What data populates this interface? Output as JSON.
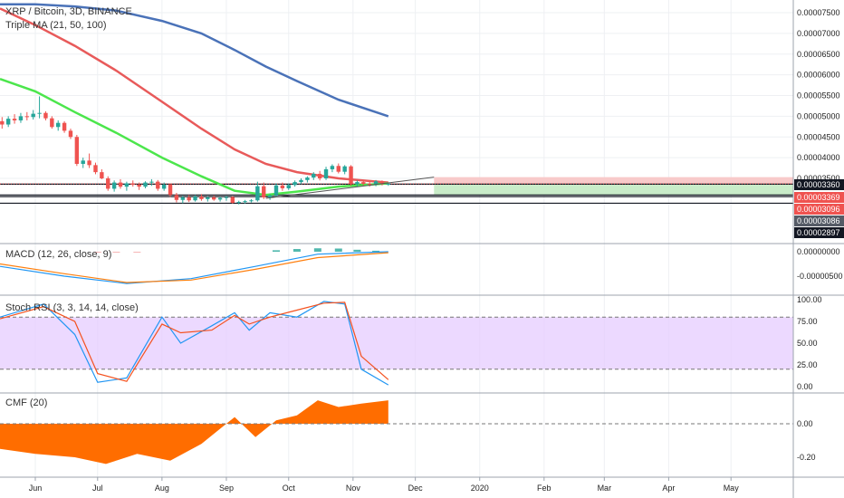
{
  "header": {
    "symbol": "XRP / Bitcoin, 3D, BINANCE",
    "indicator": "Triple MA (21, 50, 100)"
  },
  "colors": {
    "up": "#26a69a",
    "down": "#ef5350",
    "ma_fast": "#4ce64c",
    "ma_mid": "#e85a5a",
    "ma_slow": "#4a72b8",
    "macd": "#2196f3",
    "signal": "#ff7f0e",
    "stoch_k": "#2196f3",
    "stoch_d": "#f4511e",
    "rsi_band": "#e6ccff",
    "cmf_fill": "#ff6d00",
    "grid": "#eef0f3",
    "axis_border": "#9ca3ad"
  },
  "x_axis": {
    "labels": [
      "Jun",
      "Jul",
      "Aug",
      "Sep",
      "Oct",
      "Nov",
      "Dec",
      "2020",
      "Feb",
      "Mar",
      "Apr",
      "May"
    ],
    "start": "2019-05-15",
    "end": "2020-05-31"
  },
  "price_panel": {
    "y_ticks": [
      "0.00007500",
      "0.00007000",
      "0.00006500",
      "0.00006000",
      "0.00005500",
      "0.00005000",
      "0.00004500",
      "0.00004000",
      "0.00003500"
    ],
    "tags": [
      {
        "value": "0.00003360",
        "color": "#131722"
      },
      {
        "value": "0.00003369",
        "color": "#ef5350"
      },
      {
        "value": "0.00003096",
        "color": "#ef5350"
      },
      {
        "value": "0.00003086",
        "color": "#555b66"
      },
      {
        "value": "0.00002897",
        "color": "#131722"
      }
    ],
    "candles": [
      {
        "d": "2019-05-16",
        "o": 4.88e-05,
        "h": 4.98e-05,
        "l": 4.7e-05,
        "c": 4.8e-05
      },
      {
        "d": "2019-05-19",
        "o": 4.8e-05,
        "h": 5e-05,
        "l": 4.74e-05,
        "c": 4.94e-05
      },
      {
        "d": "2019-05-22",
        "o": 4.94e-05,
        "h": 5.05e-05,
        "l": 4.82e-05,
        "c": 4.9e-05
      },
      {
        "d": "2019-05-25",
        "o": 4.9e-05,
        "h": 5.08e-05,
        "l": 4.84e-05,
        "c": 5e-05
      },
      {
        "d": "2019-05-28",
        "o": 5e-05,
        "h": 5.1e-05,
        "l": 4.9e-05,
        "c": 4.98e-05
      },
      {
        "d": "2019-05-31",
        "o": 4.98e-05,
        "h": 5.15e-05,
        "l": 4.92e-05,
        "c": 5.06e-05
      },
      {
        "d": "2019-06-03",
        "o": 5.06e-05,
        "h": 5.48e-05,
        "l": 4.95e-05,
        "c": 5.08e-05
      },
      {
        "d": "2019-06-06",
        "o": 5.08e-05,
        "h": 5.12e-05,
        "l": 4.9e-05,
        "c": 4.95e-05
      },
      {
        "d": "2019-06-09",
        "o": 4.95e-05,
        "h": 5e-05,
        "l": 4.7e-05,
        "c": 4.74e-05
      },
      {
        "d": "2019-06-12",
        "o": 4.74e-05,
        "h": 4.9e-05,
        "l": 4.65e-05,
        "c": 4.84e-05
      },
      {
        "d": "2019-06-15",
        "o": 4.84e-05,
        "h": 4.88e-05,
        "l": 4.6e-05,
        "c": 4.65e-05
      },
      {
        "d": "2019-06-18",
        "o": 4.65e-05,
        "h": 4.7e-05,
        "l": 4.45e-05,
        "c": 4.5e-05
      },
      {
        "d": "2019-06-21",
        "o": 4.5e-05,
        "h": 4.55e-05,
        "l": 3.8e-05,
        "c": 3.85e-05
      },
      {
        "d": "2019-06-24",
        "o": 3.85e-05,
        "h": 4e-05,
        "l": 3.75e-05,
        "c": 3.93e-05
      },
      {
        "d": "2019-06-27",
        "o": 3.93e-05,
        "h": 4.1e-05,
        "l": 3.75e-05,
        "c": 3.82e-05
      },
      {
        "d": "2019-06-30",
        "o": 3.82e-05,
        "h": 3.88e-05,
        "l": 3.6e-05,
        "c": 3.65e-05
      },
      {
        "d": "2019-07-03",
        "o": 3.65e-05,
        "h": 3.72e-05,
        "l": 3.48e-05,
        "c": 3.5e-05
      },
      {
        "d": "2019-07-06",
        "o": 3.5e-05,
        "h": 3.55e-05,
        "l": 3.2e-05,
        "c": 3.25e-05
      },
      {
        "d": "2019-07-09",
        "o": 3.25e-05,
        "h": 3.45e-05,
        "l": 3.18e-05,
        "c": 3.4e-05
      },
      {
        "d": "2019-07-12",
        "o": 3.4e-05,
        "h": 3.48e-05,
        "l": 3.25e-05,
        "c": 3.3e-05
      },
      {
        "d": "2019-07-15",
        "o": 3.3e-05,
        "h": 3.42e-05,
        "l": 3.2e-05,
        "c": 3.38e-05
      },
      {
        "d": "2019-07-18",
        "o": 3.38e-05,
        "h": 3.45e-05,
        "l": 3.3e-05,
        "c": 3.35e-05
      },
      {
        "d": "2019-07-21",
        "o": 3.35e-05,
        "h": 3.4e-05,
        "l": 3.22e-05,
        "c": 3.3e-05
      },
      {
        "d": "2019-07-24",
        "o": 3.3e-05,
        "h": 3.43e-05,
        "l": 3.26e-05,
        "c": 3.4e-05
      },
      {
        "d": "2019-07-27",
        "o": 3.4e-05,
        "h": 3.48e-05,
        "l": 3.32e-05,
        "c": 3.42e-05
      },
      {
        "d": "2019-07-30",
        "o": 3.42e-05,
        "h": 3.46e-05,
        "l": 3.2e-05,
        "c": 3.25e-05
      },
      {
        "d": "2019-08-02",
        "o": 3.25e-05,
        "h": 3.4e-05,
        "l": 3.2e-05,
        "c": 3.35e-05
      },
      {
        "d": "2019-08-05",
        "o": 3.35e-05,
        "h": 3.38e-05,
        "l": 3.05e-05,
        "c": 3.1e-05
      },
      {
        "d": "2019-08-08",
        "o": 3.1e-05,
        "h": 3.15e-05,
        "l": 2.92e-05,
        "c": 2.98e-05
      },
      {
        "d": "2019-08-11",
        "o": 2.98e-05,
        "h": 3.08e-05,
        "l": 2.9e-05,
        "c": 3.04e-05
      },
      {
        "d": "2019-08-14",
        "o": 3.04e-05,
        "h": 3.1e-05,
        "l": 2.93e-05,
        "c": 2.97e-05
      },
      {
        "d": "2019-08-17",
        "o": 2.97e-05,
        "h": 3.1e-05,
        "l": 2.94e-05,
        "c": 3.06e-05
      },
      {
        "d": "2019-08-20",
        "o": 3.06e-05,
        "h": 3.12e-05,
        "l": 2.96e-05,
        "c": 3e-05
      },
      {
        "d": "2019-08-23",
        "o": 3e-05,
        "h": 3.07e-05,
        "l": 2.94e-05,
        "c": 3.04e-05
      },
      {
        "d": "2019-08-26",
        "o": 3.04e-05,
        "h": 3.09e-05,
        "l": 2.96e-05,
        "c": 2.99e-05
      },
      {
        "d": "2019-08-29",
        "o": 2.99e-05,
        "h": 3.06e-05,
        "l": 2.94e-05,
        "c": 3.03e-05
      },
      {
        "d": "2019-09-01",
        "o": 3.03e-05,
        "h": 3.08e-05,
        "l": 2.96e-05,
        "c": 3.05e-05
      },
      {
        "d": "2019-09-04",
        "o": 3.05e-05,
        "h": 3.07e-05,
        "l": 2.89e-05,
        "c": 2.91e-05
      },
      {
        "d": "2019-09-07",
        "o": 2.91e-05,
        "h": 2.96e-05,
        "l": 2.87e-05,
        "c": 2.93e-05
      },
      {
        "d": "2019-09-10",
        "o": 2.93e-05,
        "h": 2.98e-05,
        "l": 2.89e-05,
        "c": 2.95e-05
      },
      {
        "d": "2019-09-13",
        "o": 2.95e-05,
        "h": 3e-05,
        "l": 2.92e-05,
        "c": 2.97e-05
      },
      {
        "d": "2019-09-16",
        "o": 2.97e-05,
        "h": 3.42e-05,
        "l": 2.94e-05,
        "c": 3.31e-05
      },
      {
        "d": "2019-09-19",
        "o": 3.31e-05,
        "h": 3.4e-05,
        "l": 3e-05,
        "c": 3.04e-05
      },
      {
        "d": "2019-09-22",
        "o": 3.04e-05,
        "h": 3.12e-05,
        "l": 2.98e-05,
        "c": 3.09e-05
      },
      {
        "d": "2019-09-25",
        "o": 3.09e-05,
        "h": 3.38e-05,
        "l": 3.05e-05,
        "c": 3.33e-05
      },
      {
        "d": "2019-09-28",
        "o": 3.33e-05,
        "h": 3.4e-05,
        "l": 3.2e-05,
        "c": 3.26e-05
      },
      {
        "d": "2019-10-01",
        "o": 3.26e-05,
        "h": 3.38e-05,
        "l": 3.22e-05,
        "c": 3.34e-05
      },
      {
        "d": "2019-10-04",
        "o": 3.34e-05,
        "h": 3.45e-05,
        "l": 3.3e-05,
        "c": 3.41e-05
      },
      {
        "d": "2019-10-07",
        "o": 3.41e-05,
        "h": 3.5e-05,
        "l": 3.36e-05,
        "c": 3.46e-05
      },
      {
        "d": "2019-10-10",
        "o": 3.46e-05,
        "h": 3.55e-05,
        "l": 3.4e-05,
        "c": 3.52e-05
      },
      {
        "d": "2019-10-13",
        "o": 3.52e-05,
        "h": 3.65e-05,
        "l": 3.46e-05,
        "c": 3.61e-05
      },
      {
        "d": "2019-10-16",
        "o": 3.61e-05,
        "h": 3.68e-05,
        "l": 3.45e-05,
        "c": 3.5e-05
      },
      {
        "d": "2019-10-19",
        "o": 3.5e-05,
        "h": 3.78e-05,
        "l": 3.46e-05,
        "c": 3.72e-05
      },
      {
        "d": "2019-10-22",
        "o": 3.72e-05,
        "h": 3.84e-05,
        "l": 3.65e-05,
        "c": 3.8e-05
      },
      {
        "d": "2019-10-25",
        "o": 3.8e-05,
        "h": 3.86e-05,
        "l": 3.62e-05,
        "c": 3.66e-05
      },
      {
        "d": "2019-10-28",
        "o": 3.66e-05,
        "h": 3.82e-05,
        "l": 3.6e-05,
        "c": 3.79e-05
      },
      {
        "d": "2019-10-31",
        "o": 3.79e-05,
        "h": 3.82e-05,
        "l": 3.32e-05,
        "c": 3.36e-05
      },
      {
        "d": "2019-11-03",
        "o": 3.36e-05,
        "h": 3.45e-05,
        "l": 3.3e-05,
        "c": 3.41e-05
      },
      {
        "d": "2019-11-06",
        "o": 3.41e-05,
        "h": 3.45e-05,
        "l": 3.33e-05,
        "c": 3.37e-05
      },
      {
        "d": "2019-11-09",
        "o": 3.37e-05,
        "h": 3.42e-05,
        "l": 3.3e-05,
        "c": 3.35e-05
      },
      {
        "d": "2019-11-12",
        "o": 3.35e-05,
        "h": 3.46e-05,
        "l": 3.31e-05,
        "c": 3.43e-05
      },
      {
        "d": "2019-11-15",
        "o": 3.43e-05,
        "h": 3.45e-05,
        "l": 3.33e-05,
        "c": 3.36e-05
      },
      {
        "d": "2019-11-18",
        "o": 3.36e-05,
        "h": 3.4e-05,
        "l": 3.32e-05,
        "c": 3.37e-05
      }
    ],
    "ma_fast": [
      {
        "d": "2019-05-15",
        "v": 5.9e-05
      },
      {
        "d": "2019-06-01",
        "v": 5.6e-05
      },
      {
        "d": "2019-06-20",
        "v": 5.1e-05
      },
      {
        "d": "2019-07-10",
        "v": 4.6e-05
      },
      {
        "d": "2019-08-01",
        "v": 4e-05
      },
      {
        "d": "2019-08-20",
        "v": 3.55e-05
      },
      {
        "d": "2019-09-05",
        "v": 3.2e-05
      },
      {
        "d": "2019-09-20",
        "v": 3.1e-05
      },
      {
        "d": "2019-10-05",
        "v": 3.18e-05
      },
      {
        "d": "2019-10-25",
        "v": 3.3e-05
      },
      {
        "d": "2019-11-18",
        "v": 3.38e-05
      }
    ],
    "ma_mid": [
      {
        "d": "2019-05-15",
        "v": 7.6e-05
      },
      {
        "d": "2019-06-01",
        "v": 7.2e-05
      },
      {
        "d": "2019-06-20",
        "v": 6.7e-05
      },
      {
        "d": "2019-07-10",
        "v": 6.1e-05
      },
      {
        "d": "2019-08-01",
        "v": 5.35e-05
      },
      {
        "d": "2019-08-20",
        "v": 4.7e-05
      },
      {
        "d": "2019-09-05",
        "v": 4.2e-05
      },
      {
        "d": "2019-09-20",
        "v": 3.85e-05
      },
      {
        "d": "2019-10-05",
        "v": 3.65e-05
      },
      {
        "d": "2019-10-25",
        "v": 3.5e-05
      },
      {
        "d": "2019-11-18",
        "v": 3.4e-05
      }
    ],
    "ma_slow": [
      {
        "d": "2019-05-15",
        "v": 7.7e-05
      },
      {
        "d": "2019-06-01",
        "v": 7.7e-05
      },
      {
        "d": "2019-06-20",
        "v": 7.65e-05
      },
      {
        "d": "2019-07-10",
        "v": 7.55e-05
      },
      {
        "d": "2019-08-01",
        "v": 7.3e-05
      },
      {
        "d": "2019-08-20",
        "v": 7e-05
      },
      {
        "d": "2019-09-05",
        "v": 6.6e-05
      },
      {
        "d": "2019-09-20",
        "v": 6.2e-05
      },
      {
        "d": "2019-10-05",
        "v": 5.85e-05
      },
      {
        "d": "2019-10-25",
        "v": 5.4e-05
      },
      {
        "d": "2019-11-18",
        "v": 5e-05
      }
    ],
    "trendline": [
      {
        "d": "2019-09-20",
        "v": 3.02e-05
      },
      {
        "d": "2019-12-10",
        "v": 3.53e-05
      }
    ],
    "hlines": [
      3.36e-05,
      3.1e-05,
      3.06e-05,
      2.9e-05
    ],
    "dotted_price": 3.37e-05,
    "position": {
      "start": "2019-12-10",
      "end": "2020-05-31",
      "stop": 3.53e-05,
      "entry": 3.37e-05,
      "target": 3.1e-05
    }
  },
  "macd_panel": {
    "title": "MACD (12, 26, close, 9)",
    "y_ticks": [
      "0.00000000",
      "-0.00000500"
    ],
    "hist": [
      {
        "d": "2019-07-01",
        "v": -1e-07
      },
      {
        "d": "2019-07-10",
        "v": -1.5e-07
      },
      {
        "d": "2019-07-20",
        "v": -8e-08
      },
      {
        "d": "2019-09-25",
        "v": 3e-07
      },
      {
        "d": "2019-10-05",
        "v": 5.5e-07
      },
      {
        "d": "2019-10-15",
        "v": 7e-07
      },
      {
        "d": "2019-10-25",
        "v": 6.5e-07
      },
      {
        "d": "2019-11-03",
        "v": 4e-07
      },
      {
        "d": "2019-11-12",
        "v": 2e-07
      }
    ],
    "macd": [
      {
        "d": "2019-05-15",
        "v": -3e-06
      },
      {
        "d": "2019-06-15",
        "v": -5e-06
      },
      {
        "d": "2019-07-15",
        "v": -6.5e-06
      },
      {
        "d": "2019-08-15",
        "v": -5.5e-06
      },
      {
        "d": "2019-09-15",
        "v": -3e-06
      },
      {
        "d": "2019-10-15",
        "v": -5e-07
      },
      {
        "d": "2019-11-18",
        "v": 0.0
      }
    ],
    "signal": [
      {
        "d": "2019-05-15",
        "v": -2.5e-06
      },
      {
        "d": "2019-06-15",
        "v": -4.5e-06
      },
      {
        "d": "2019-07-15",
        "v": -6.3e-06
      },
      {
        "d": "2019-08-15",
        "v": -5.8e-06
      },
      {
        "d": "2019-09-15",
        "v": -3.6e-06
      },
      {
        "d": "2019-10-15",
        "v": -1.2e-06
      },
      {
        "d": "2019-11-18",
        "v": -2e-07
      }
    ]
  },
  "stoch_panel": {
    "title": "Stoch RSI (3, 3, 14, 14, close)",
    "y_ticks": [
      "100.00",
      "75.00",
      "50.00",
      "25.00",
      "0.00"
    ],
    "k": [
      {
        "d": "2019-05-15",
        "v": 80
      },
      {
        "d": "2019-06-05",
        "v": 95
      },
      {
        "d": "2019-06-20",
        "v": 60
      },
      {
        "d": "2019-07-01",
        "v": 5
      },
      {
        "d": "2019-07-15",
        "v": 10
      },
      {
        "d": "2019-08-01",
        "v": 80
      },
      {
        "d": "2019-08-10",
        "v": 50
      },
      {
        "d": "2019-08-25",
        "v": 70
      },
      {
        "d": "2019-09-05",
        "v": 85
      },
      {
        "d": "2019-09-12",
        "v": 65
      },
      {
        "d": "2019-09-22",
        "v": 85
      },
      {
        "d": "2019-10-05",
        "v": 80
      },
      {
        "d": "2019-10-18",
        "v": 98
      },
      {
        "d": "2019-10-28",
        "v": 95
      },
      {
        "d": "2019-11-05",
        "v": 20
      },
      {
        "d": "2019-11-18",
        "v": 2
      }
    ],
    "d": [
      {
        "d": "2019-05-15",
        "v": 78
      },
      {
        "d": "2019-06-05",
        "v": 92
      },
      {
        "d": "2019-06-20",
        "v": 75
      },
      {
        "d": "2019-07-01",
        "v": 15
      },
      {
        "d": "2019-07-15",
        "v": 6
      },
      {
        "d": "2019-08-01",
        "v": 72
      },
      {
        "d": "2019-08-10",
        "v": 62
      },
      {
        "d": "2019-08-25",
        "v": 65
      },
      {
        "d": "2019-09-05",
        "v": 82
      },
      {
        "d": "2019-09-12",
        "v": 72
      },
      {
        "d": "2019-09-22",
        "v": 80
      },
      {
        "d": "2019-10-05",
        "v": 88
      },
      {
        "d": "2019-10-18",
        "v": 96
      },
      {
        "d": "2019-10-28",
        "v": 97
      },
      {
        "d": "2019-11-05",
        "v": 35
      },
      {
        "d": "2019-11-18",
        "v": 8
      }
    ]
  },
  "cmf_panel": {
    "title": "CMF (20)",
    "y_ticks": [
      "0.00",
      "-0.20"
    ],
    "values": [
      {
        "d": "2019-05-15",
        "v": -0.15
      },
      {
        "d": "2019-06-01",
        "v": -0.18
      },
      {
        "d": "2019-06-20",
        "v": -0.2
      },
      {
        "d": "2019-07-05",
        "v": -0.24
      },
      {
        "d": "2019-07-20",
        "v": -0.18
      },
      {
        "d": "2019-08-05",
        "v": -0.22
      },
      {
        "d": "2019-08-20",
        "v": -0.12
      },
      {
        "d": "2019-09-05",
        "v": 0.04
      },
      {
        "d": "2019-09-15",
        "v": -0.08
      },
      {
        "d": "2019-09-25",
        "v": 0.02
      },
      {
        "d": "2019-10-05",
        "v": 0.05
      },
      {
        "d": "2019-10-15",
        "v": 0.14
      },
      {
        "d": "2019-10-25",
        "v": 0.1
      },
      {
        "d": "2019-11-05",
        "v": 0.12
      },
      {
        "d": "2019-11-18",
        "v": 0.14
      }
    ]
  }
}
